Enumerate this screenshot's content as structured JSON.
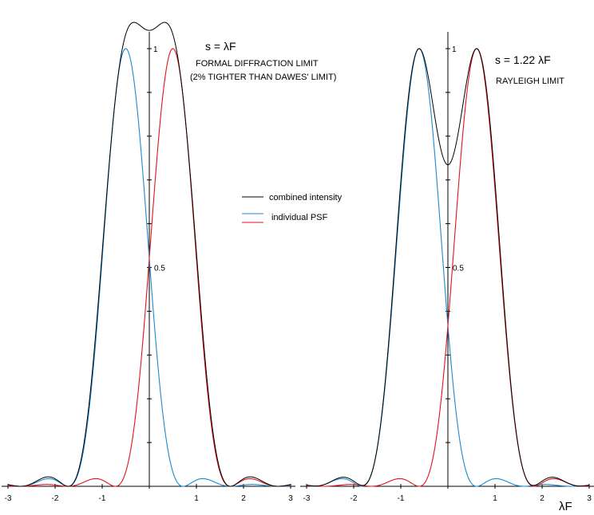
{
  "colors": {
    "combined": "#000000",
    "left_psf": "#1a8ad0",
    "right_psf": "#e0141e",
    "axis": "#000000"
  },
  "legend": {
    "placement": "center",
    "items": [
      {
        "label": "combined intensity",
        "color": "#000000"
      },
      {
        "label": "individual PSF",
        "color": "#1a8ad0",
        "color2": "#e0141e"
      }
    ]
  },
  "axis_unit_label": "λF",
  "chart_data": [
    {
      "type": "line",
      "function": "airy_psf_sum",
      "separation": 1.0,
      "xlim": [
        -3,
        3
      ],
      "ylim": [
        0,
        1.05
      ],
      "x_ticks": [
        "-3",
        "-2",
        "-1",
        "0",
        "1",
        "2",
        "3"
      ],
      "y_tick_labels": {
        "half": "0.5",
        "one": "1"
      },
      "y_label_values": [
        0.5,
        1
      ],
      "grid": false,
      "annotations": {
        "title": "s = λF",
        "line1": "FORMAL DIFFRACTION LIMIT",
        "line2": "(2% TIGHTER THAN DAWES' LIMIT)"
      },
      "series": [
        {
          "role": "left_psf",
          "center": -0.5
        },
        {
          "role": "right_psf",
          "center": 0.5
        },
        {
          "role": "combined"
        }
      ]
    },
    {
      "type": "line",
      "function": "airy_psf_sum",
      "separation": 1.22,
      "xlim": [
        -3,
        3
      ],
      "ylim": [
        0,
        1.05
      ],
      "x_ticks": [
        "-3",
        "-2",
        "-1",
        "0",
        "1",
        "2",
        "3"
      ],
      "y_tick_labels": {
        "half": "0.5",
        "one": "1"
      },
      "y_label_values": [
        0.5,
        1
      ],
      "grid": false,
      "annotations": {
        "title": "s = 1.22 λF",
        "line1": "RAYLEIGH LIMIT",
        "line2": ""
      },
      "series": [
        {
          "role": "left_psf",
          "center": -0.61
        },
        {
          "role": "right_psf",
          "center": 0.61
        },
        {
          "role": "combined"
        }
      ]
    }
  ]
}
